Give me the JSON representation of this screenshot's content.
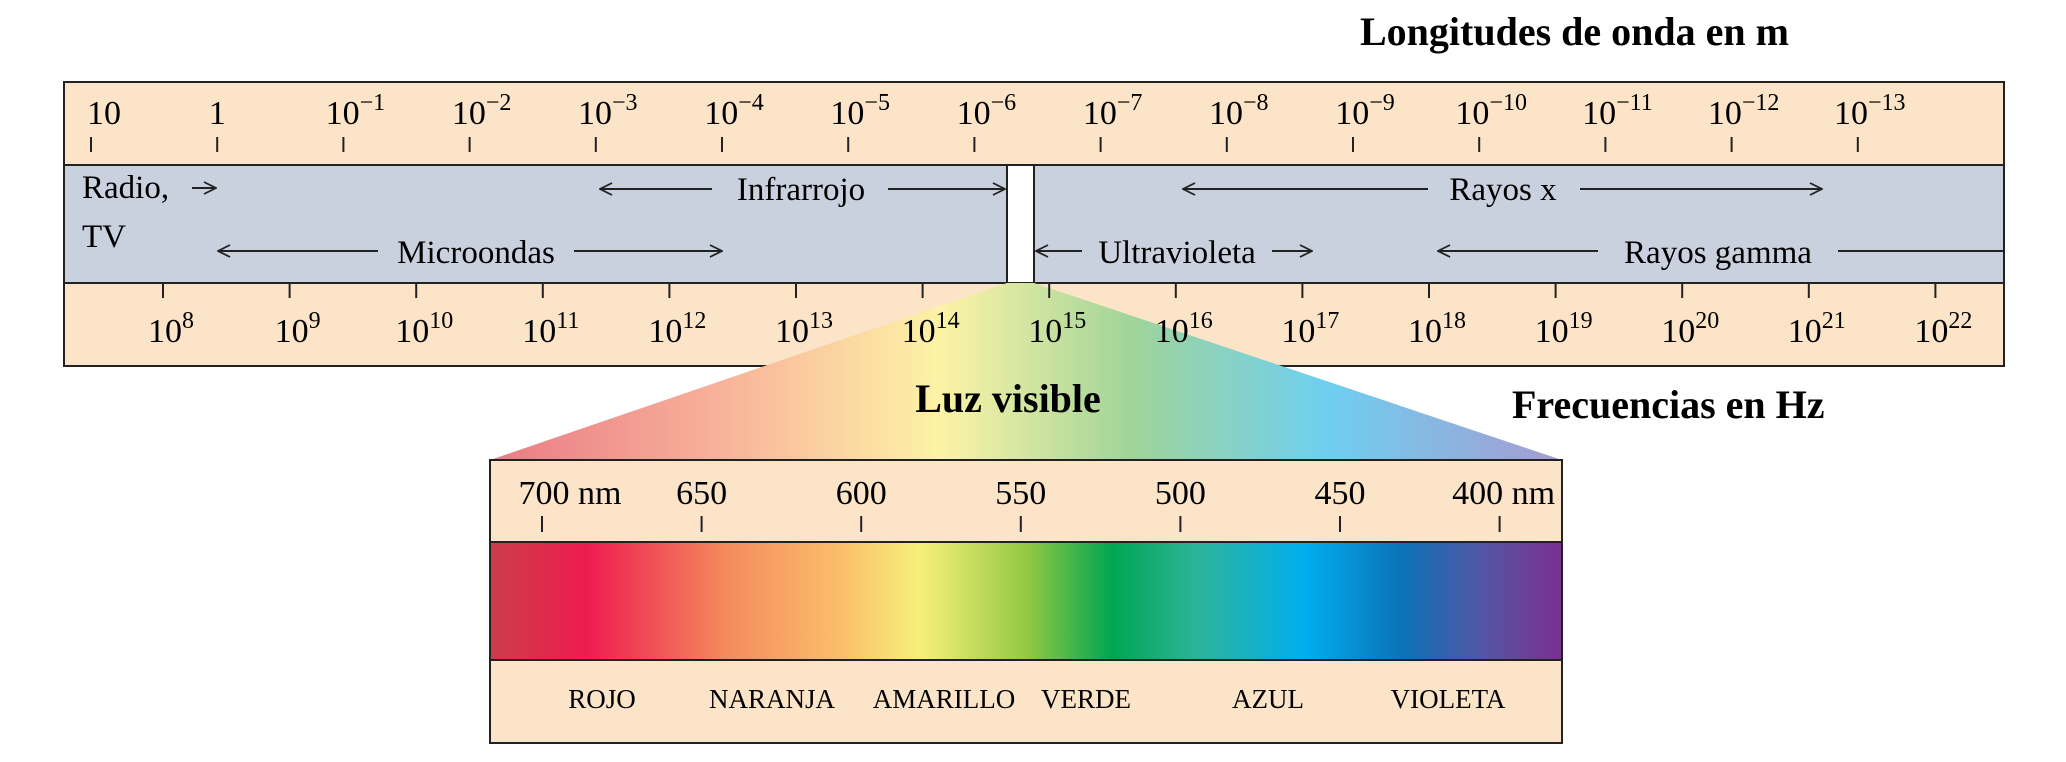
{
  "titles": {
    "wavelength": "Longitudes de onda en m",
    "frequency": "Frecuencias en Hz",
    "visible": "Luz visible"
  },
  "wavelength_ticks": [
    {
      "base": "10",
      "exp": ""
    },
    {
      "base": "1",
      "exp": ""
    },
    {
      "base": "10",
      "exp": "−1"
    },
    {
      "base": "10",
      "exp": "−2"
    },
    {
      "base": "10",
      "exp": "−3"
    },
    {
      "base": "10",
      "exp": "−4"
    },
    {
      "base": "10",
      "exp": "−5"
    },
    {
      "base": "10",
      "exp": "−6"
    },
    {
      "base": "10",
      "exp": "−7"
    },
    {
      "base": "10",
      "exp": "−8"
    },
    {
      "base": "10",
      "exp": "−9"
    },
    {
      "base": "10",
      "exp": "−10"
    },
    {
      "base": "10",
      "exp": "−11"
    },
    {
      "base": "10",
      "exp": "−12"
    },
    {
      "base": "10",
      "exp": "−13"
    }
  ],
  "frequency_ticks": [
    {
      "base": "10",
      "exp": "8"
    },
    {
      "base": "10",
      "exp": "9"
    },
    {
      "base": "10",
      "exp": "10"
    },
    {
      "base": "10",
      "exp": "11"
    },
    {
      "base": "10",
      "exp": "12"
    },
    {
      "base": "10",
      "exp": "13"
    },
    {
      "base": "10",
      "exp": "14"
    },
    {
      "base": "10",
      "exp": "15"
    },
    {
      "base": "10",
      "exp": "16"
    },
    {
      "base": "10",
      "exp": "17"
    },
    {
      "base": "10",
      "exp": "18"
    },
    {
      "base": "10",
      "exp": "19"
    },
    {
      "base": "10",
      "exp": "20"
    },
    {
      "base": "10",
      "exp": "21"
    },
    {
      "base": "10",
      "exp": "22"
    }
  ],
  "regions": {
    "radio_line1": "Radio,",
    "radio_line2": "TV",
    "infrared": "Infrarrojo",
    "microwaves": "Microondas",
    "xrays": "Rayos x",
    "ultraviolet": "Ultravioleta",
    "gamma": "Rayos gamma"
  },
  "visible_ticks": [
    "700 nm",
    "650",
    "600",
    "550",
    "500",
    "450",
    "400 nm"
  ],
  "colors": [
    "ROJO",
    "NARANJA",
    "AMARILLO",
    "VERDE",
    "AZUL",
    "VIOLETA"
  ],
  "palette": {
    "band_peach": "#fce4c8",
    "band_blue": "#c9d0de",
    "border": "#222222"
  }
}
